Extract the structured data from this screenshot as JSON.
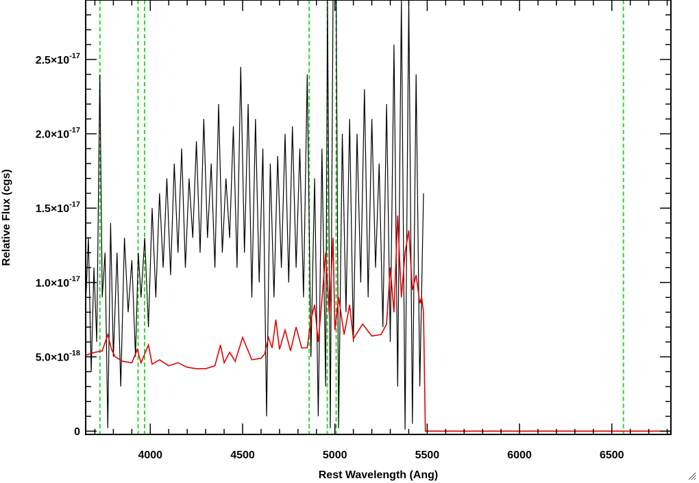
{
  "chart_data": {
    "type": "line",
    "xlabel": "Rest Wavelength (Ang)",
    "ylabel": "Relative Flux (cgs)",
    "xlim": [
      3650,
      6820
    ],
    "ylim": [
      -2.2e-19,
      2.9e-17
    ],
    "x_ticks": [
      {
        "value": 4000,
        "label": "4000"
      },
      {
        "value": 4500,
        "label": "4500"
      },
      {
        "value": 5000,
        "label": "5000"
      },
      {
        "value": 5500,
        "label": "5500"
      },
      {
        "value": 6000,
        "label": "6000"
      },
      {
        "value": 6500,
        "label": "6500"
      }
    ],
    "y_ticks": [
      {
        "value": 0,
        "mantissa": "0",
        "exponent": ""
      },
      {
        "value": 5e-18,
        "mantissa": "5.0×10",
        "exponent": "-18"
      },
      {
        "value": 1e-17,
        "mantissa": "1.0×10",
        "exponent": "-17"
      },
      {
        "value": 1.5e-17,
        "mantissa": "1.5×10",
        "exponent": "-17"
      },
      {
        "value": 2e-17,
        "mantissa": "2.0×10",
        "exponent": "-17"
      },
      {
        "value": 2.5e-17,
        "mantissa": "2.5×10",
        "exponent": "-17"
      }
    ],
    "reference_lines_x": [
      3727,
      3934,
      3969,
      4861,
      4959,
      5007,
      6563
    ],
    "series": [
      {
        "color": "#000000",
        "x": [
          3650,
          3665,
          3680,
          3695,
          3710,
          3727,
          3740,
          3755,
          3770,
          3785,
          3800,
          3820,
          3840,
          3860,
          3880,
          3900,
          3920,
          3935,
          3950,
          3970,
          3990,
          4010,
          4030,
          4050,
          4070,
          4090,
          4110,
          4130,
          4150,
          4170,
          4190,
          4210,
          4230,
          4250,
          4270,
          4290,
          4310,
          4330,
          4350,
          4370,
          4390,
          4410,
          4430,
          4450,
          4470,
          4490,
          4510,
          4530,
          4550,
          4570,
          4590,
          4610,
          4630,
          4650,
          4670,
          4690,
          4710,
          4730,
          4750,
          4770,
          4790,
          4810,
          4830,
          4850,
          4870,
          4890,
          4910,
          4930,
          4950,
          4960,
          4975,
          4990,
          5007,
          5020,
          5040,
          5060,
          5080,
          5100,
          5120,
          5140,
          5160,
          5180,
          5200,
          5220,
          5240,
          5260,
          5280,
          5300,
          5320,
          5340,
          5360,
          5380,
          5400,
          5420,
          5440,
          5460,
          5480
        ],
        "y": [
          8.5e-18,
          1.3e-17,
          4e-18,
          1.1e-17,
          6e-18,
          2.4e-17,
          9e-18,
          1.2e-17,
          2e-19,
          1.4e-17,
          5e-18,
          1.2e-17,
          3e-18,
          1.3e-17,
          8e-18,
          1.15e-17,
          5e-18,
          1.2e-17,
          9e-18,
          1.3e-17,
          7e-18,
          1.5e-17,
          9e-18,
          1.6e-17,
          1.1e-17,
          1.7e-17,
          1.05e-17,
          1.8e-17,
          1.2e-17,
          1.9e-17,
          1.1e-17,
          1.7e-17,
          1.3e-17,
          1.95e-17,
          1.2e-17,
          2.1e-17,
          1.3e-17,
          1.8e-17,
          1.1e-17,
          2.2e-17,
          1.2e-17,
          1.7e-17,
          1.3e-17,
          2.05e-17,
          1.1e-17,
          2.45e-17,
          1.2e-17,
          2.2e-17,
          9e-18,
          2.1e-17,
          1e-17,
          1.9e-17,
          1e-18,
          1.8e-17,
          9e-18,
          1.85e-17,
          1.1e-17,
          2e-17,
          1e-17,
          2.05e-17,
          1.1e-17,
          1.9e-17,
          9e-18,
          2.4e-17,
          5e-18,
          1.7e-17,
          1e-18,
          1.9e-17,
          3e-18,
          2.9e-17,
          2e-19,
          2.9e-17,
          2.9e-17,
          2e-19,
          2e-17,
          8e-18,
          2.1e-17,
          6e-18,
          2e-17,
          1e-17,
          2.3e-17,
          9e-18,
          2.1e-17,
          1.1e-17,
          1.8e-17,
          7e-18,
          2.2e-17,
          6e-18,
          2.6e-17,
          3e-18,
          2.9e-17,
          1e-19,
          2.9e-17,
          5e-19,
          2.4e-17,
          3e-18,
          1.6e-17
        ]
      },
      {
        "color": "#e00000",
        "x": [
          3650,
          3700,
          3740,
          3770,
          3790,
          3810,
          3850,
          3900,
          3930,
          3950,
          3990,
          4010,
          4050,
          4100,
          4150,
          4200,
          4250,
          4300,
          4350,
          4380,
          4400,
          4430,
          4460,
          4500,
          4550,
          4600,
          4620,
          4640,
          4660,
          4680,
          4700,
          4730,
          4760,
          4790,
          4820,
          4850,
          4870,
          4890,
          4910,
          4930,
          4950,
          4970,
          4990,
          5000,
          5020,
          5050,
          5080,
          5100,
          5150,
          5200,
          5250,
          5280,
          5300,
          5320,
          5340,
          5360,
          5380,
          5400,
          5420,
          5440,
          5460,
          5470,
          5480,
          5490,
          5500,
          5800,
          6200,
          6600,
          6820
        ],
        "y": [
          5.1e-18,
          5.3e-18,
          5.4e-18,
          6.5e-18,
          5.5e-18,
          5e-18,
          4.7e-18,
          4.6e-18,
          5.5e-18,
          4.6e-18,
          5.8e-18,
          4.5e-18,
          4.8e-18,
          4.4e-18,
          4.6e-18,
          4.3e-18,
          4.2e-18,
          4.2e-18,
          4.4e-18,
          5.8e-18,
          4.6e-18,
          5.3e-18,
          4.7e-18,
          6.3e-18,
          4.8e-18,
          4.9e-18,
          5.2e-18,
          6.3e-18,
          5.6e-18,
          7.5e-18,
          5.5e-18,
          6.8e-18,
          5.4e-18,
          7e-18,
          5.6e-18,
          5.6e-18,
          7.5e-18,
          8.5e-18,
          6e-18,
          8.8e-18,
          1.2e-17,
          7.8e-18,
          1.3e-17,
          6.8e-18,
          9e-18,
          6.5e-18,
          8.5e-18,
          6.2e-18,
          7.2e-18,
          6.4e-18,
          6.5e-18,
          7.2e-18,
          1.1e-17,
          8e-18,
          1.45e-17,
          9e-18,
          1.2e-17,
          1.35e-17,
          9.5e-18,
          1.05e-17,
          8.6e-18,
          9e-18,
          8e-18,
          0,
          0,
          0,
          0,
          0,
          0
        ]
      }
    ]
  },
  "ui": {
    "resize_grip_icon": "resize-grip-icon"
  }
}
